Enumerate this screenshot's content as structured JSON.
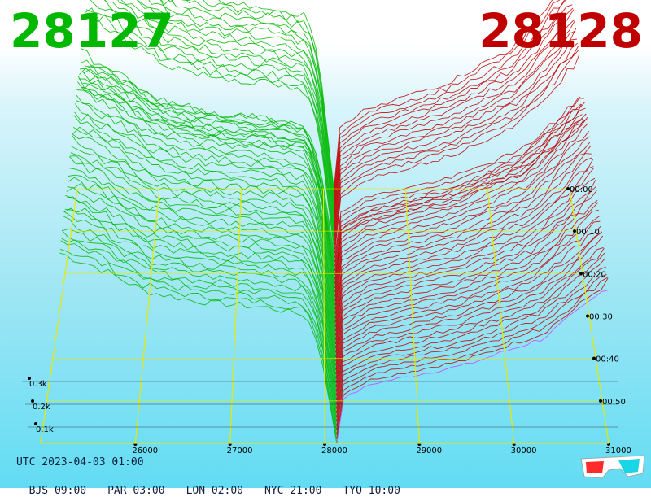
{
  "header": {
    "bid_price": "28127",
    "ask_price": "28128"
  },
  "footer": {
    "utc": "UTC 2023-04-03 01:00",
    "zones": [
      "BJS 09:00",
      "PAR 03:00",
      "LON 02:00",
      "NYC 21:00",
      "TYO 10:00"
    ]
  },
  "icons": {
    "glasses": "3d-glasses-icon"
  },
  "colors": {
    "bid": "#00b800",
    "ask": "#c00000",
    "grid": "#e8e800",
    "latest_ask": "#cc44ff"
  },
  "chart_data": {
    "type": "area",
    "title": "",
    "x_ticks": [
      26000,
      27000,
      28000,
      29000,
      30000,
      31000
    ],
    "x_tick_labels": [
      "26000",
      "27000",
      "28000",
      "29000",
      "30000",
      "31000"
    ],
    "xlim": [
      25000,
      31000
    ],
    "mid_price": 28127.5,
    "depth_ticks": [
      100,
      200,
      300
    ],
    "depth_tick_labels": [
      "0.1k",
      "0.2k",
      "0.3k"
    ],
    "depth_max": 400,
    "time_ticks": [
      0,
      10,
      20,
      30,
      40,
      50
    ],
    "time_tick_labels": [
      "00:00",
      "00:10",
      "00:20",
      "00:30",
      "00:40",
      "00:50"
    ],
    "time_range_minutes": [
      0,
      60
    ],
    "snapshots": 60,
    "grid": true,
    "series": [
      {
        "name": "",
        "side": "bid",
        "x": [
          25200,
          25600,
          26100,
          26600,
          27000,
          27400,
          27800,
          27950,
          28127
        ],
        "y": [
          400,
          370,
          320,
          300,
          292,
          285,
          270,
          200,
          0
        ]
      },
      {
        "name": "",
        "side": "ask",
        "x": [
          28128,
          28200,
          28500,
          29000,
          29500,
          30000,
          30300,
          30700,
          31000
        ],
        "y": [
          0,
          95,
          125,
          145,
          165,
          200,
          220,
          280,
          330
        ]
      }
    ]
  }
}
